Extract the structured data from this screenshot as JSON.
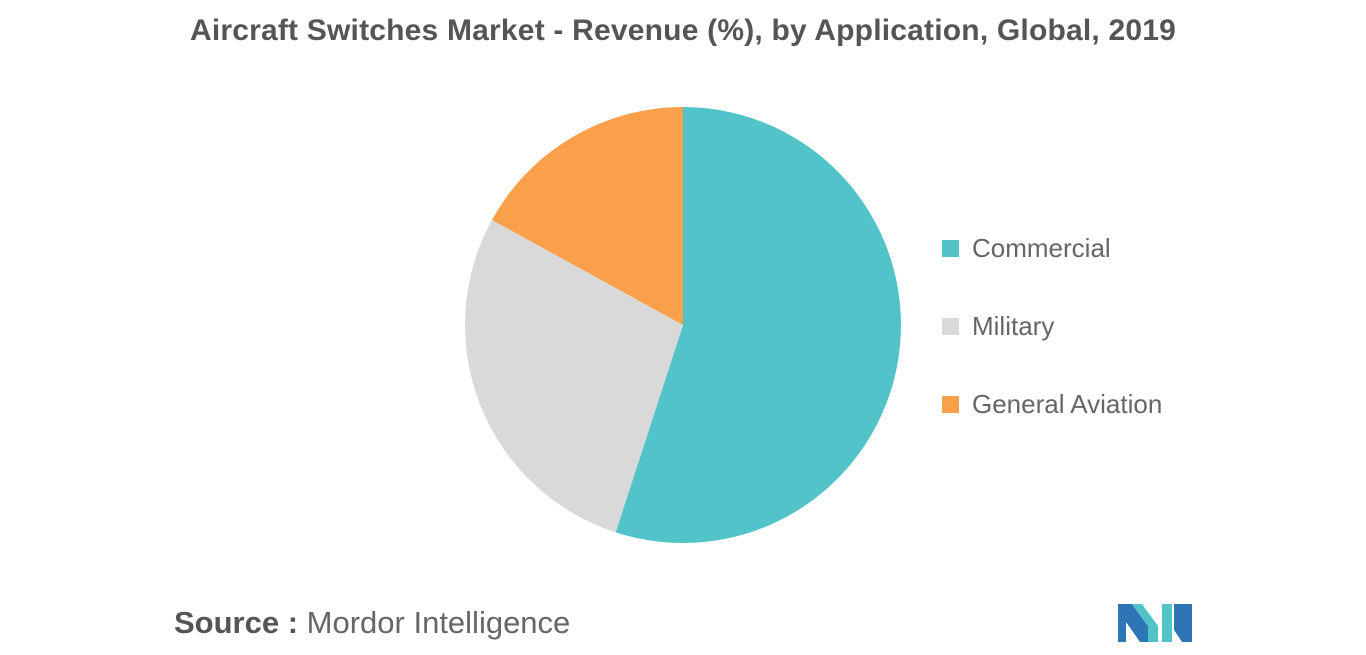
{
  "chart_data": {
    "type": "pie",
    "title": "Aircraft Switches Market - Revenue (%), by Application, Global, 2019",
    "categories": [
      "Commercial",
      "Military",
      "General Aviation"
    ],
    "values": [
      55,
      28,
      17
    ],
    "colors": [
      "#52C4C9",
      "#D9D9D9",
      "#FBA04A"
    ],
    "start_angle_deg": 0,
    "direction": "clockwise",
    "legend_position": "right"
  },
  "source": {
    "label": "Source :",
    "text": "Mordor Intelligence"
  },
  "logo": {
    "icon": "mordor-intelligence-logo",
    "colors": [
      "#2E75B6",
      "#52C4C9"
    ]
  }
}
